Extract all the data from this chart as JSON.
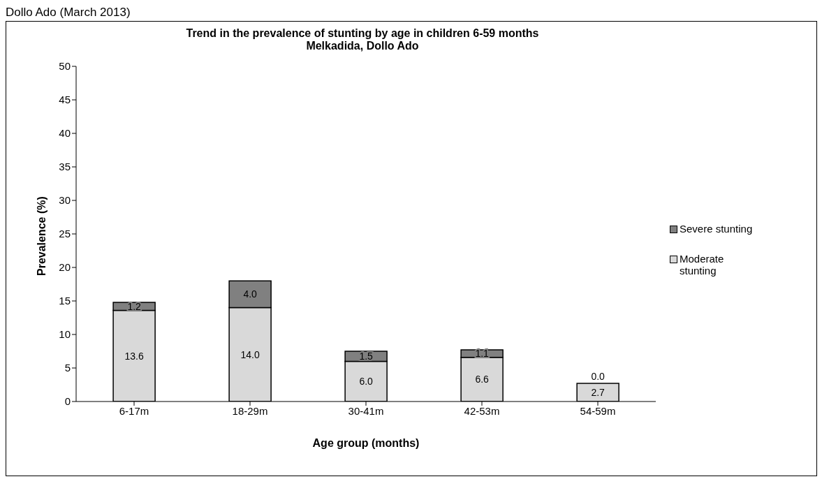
{
  "chart_data": {
    "type": "bar",
    "title": "Trend in the prevalence of stunting by age in children 6-59 months",
    "subtitle": "Melkadida, Dollo Ado",
    "xlabel": "Age group (months)",
    "ylabel": "Prevalence (%)",
    "annotations": [
      "Dollo Ado (March 2013)"
    ],
    "categories": [
      "6-17m",
      "18-29m",
      "30-41m",
      "42-53m",
      "54-59m"
    ],
    "series": [
      {
        "name": "Moderate stunting",
        "color": "#d9d9d9",
        "values": [
          13.6,
          14.0,
          6.0,
          6.6,
          2.7
        ],
        "value_labels": [
          "13.6",
          "14.0",
          "6.0",
          "6.6",
          "2.7"
        ]
      },
      {
        "name": "Severe stunting",
        "color": "#808080",
        "values": [
          1.2,
          4.0,
          1.5,
          1.1,
          0.0
        ],
        "value_labels": [
          "1.2",
          "4.0",
          "1.5",
          "1.1",
          "0.0"
        ]
      }
    ],
    "stacked": true,
    "ylim": [
      0,
      50
    ],
    "yticks": [
      0,
      5,
      10,
      15,
      20,
      25,
      30,
      35,
      40,
      45,
      50
    ],
    "legend": "right",
    "grid": false
  }
}
